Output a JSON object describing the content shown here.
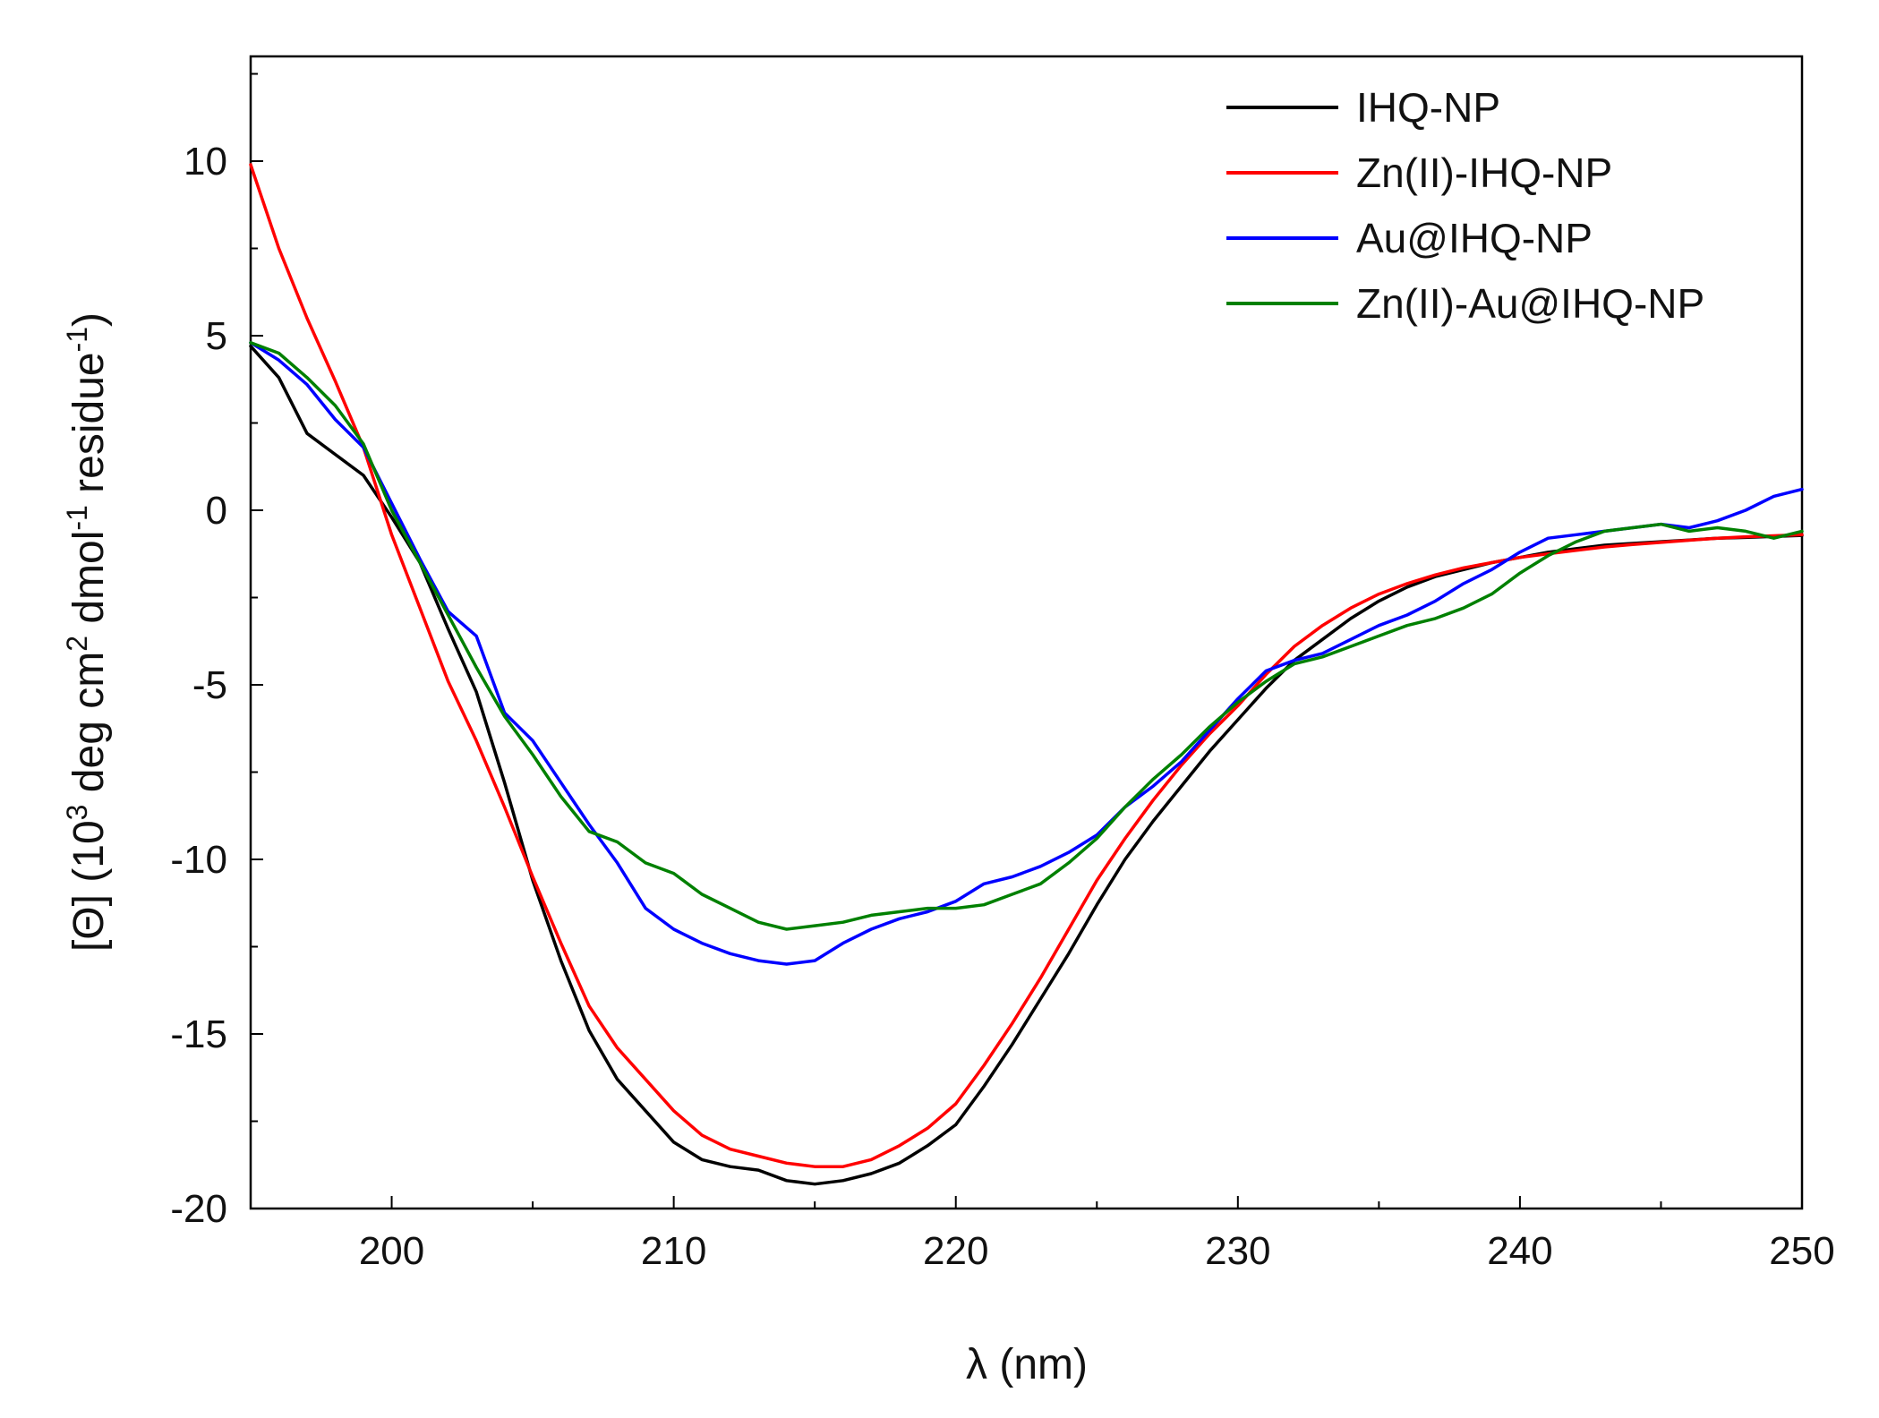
{
  "chart_data": {
    "type": "line",
    "title": "",
    "xlabel": "λ (nm)",
    "ylabel_parts": {
      "a": "[Θ] (10",
      "b": "3",
      "c": " deg cm",
      "d": "2",
      "e": " dmol",
      "f": "-1",
      "g": " residue",
      "h": "-1",
      "i": ")"
    },
    "xlim": [
      195,
      250
    ],
    "ylim": [
      -20,
      13
    ],
    "xticks": [
      200,
      210,
      220,
      230,
      240,
      250
    ],
    "yticks": [
      10,
      5,
      0,
      -5,
      -10,
      -15,
      -20
    ],
    "legend_position": "top-right",
    "series": [
      {
        "name": "IHQ-NP",
        "color": "#000000",
        "x": [
          195,
          196,
          197,
          198,
          199,
          200,
          201,
          202,
          203,
          204,
          205,
          206,
          207,
          208,
          209,
          210,
          211,
          212,
          213,
          214,
          215,
          216,
          217,
          218,
          219,
          220,
          221,
          222,
          223,
          224,
          225,
          226,
          227,
          228,
          229,
          230,
          231,
          232,
          233,
          234,
          235,
          236,
          237,
          238,
          239,
          240,
          241,
          242,
          243,
          244,
          245,
          246,
          247,
          248,
          249,
          250
        ],
        "y": [
          4.7,
          3.8,
          2.2,
          1.6,
          1.0,
          -0.2,
          -1.5,
          -3.4,
          -5.2,
          -7.8,
          -10.6,
          -12.9,
          -14.9,
          -16.3,
          -17.2,
          -18.1,
          -18.6,
          -18.8,
          -18.9,
          -19.2,
          -19.3,
          -19.2,
          -19.0,
          -18.7,
          -18.2,
          -17.6,
          -16.5,
          -15.3,
          -14.0,
          -12.7,
          -11.3,
          -10.0,
          -8.9,
          -7.9,
          -6.9,
          -6.0,
          -5.1,
          -4.3,
          -3.7,
          -3.1,
          -2.6,
          -2.2,
          -1.9,
          -1.7,
          -1.5,
          -1.35,
          -1.2,
          -1.1,
          -1.0,
          -0.95,
          -0.9,
          -0.85,
          -0.8,
          -0.78,
          -0.75,
          -0.72
        ]
      },
      {
        "name": "Zn(II)-IHQ-NP",
        "color": "#ff0000",
        "x": [
          195,
          196,
          197,
          198,
          199,
          200,
          201,
          202,
          203,
          204,
          205,
          206,
          207,
          208,
          209,
          210,
          211,
          212,
          213,
          214,
          215,
          216,
          217,
          218,
          219,
          220,
          221,
          222,
          223,
          224,
          225,
          226,
          227,
          228,
          229,
          230,
          231,
          232,
          233,
          234,
          235,
          236,
          237,
          238,
          239,
          240,
          241,
          242,
          243,
          244,
          245,
          246,
          247,
          248,
          249,
          250
        ],
        "y": [
          9.9,
          7.5,
          5.5,
          3.7,
          1.8,
          -0.7,
          -2.8,
          -4.9,
          -6.6,
          -8.5,
          -10.5,
          -12.4,
          -14.2,
          -15.4,
          -16.3,
          -17.2,
          -17.9,
          -18.3,
          -18.5,
          -18.7,
          -18.8,
          -18.8,
          -18.6,
          -18.2,
          -17.7,
          -17.0,
          -15.9,
          -14.7,
          -13.4,
          -12.0,
          -10.6,
          -9.4,
          -8.3,
          -7.3,
          -6.4,
          -5.6,
          -4.7,
          -3.9,
          -3.3,
          -2.8,
          -2.4,
          -2.1,
          -1.85,
          -1.65,
          -1.5,
          -1.35,
          -1.25,
          -1.15,
          -1.05,
          -0.98,
          -0.92,
          -0.86,
          -0.8,
          -0.76,
          -0.73,
          -0.7
        ]
      },
      {
        "name": "Au@IHQ-NP",
        "color": "#0000ff",
        "x": [
          195,
          196,
          197,
          198,
          199,
          200,
          201,
          202,
          203,
          204,
          205,
          206,
          207,
          208,
          209,
          210,
          211,
          212,
          213,
          214,
          215,
          216,
          217,
          218,
          219,
          220,
          221,
          222,
          223,
          224,
          225,
          226,
          227,
          228,
          229,
          230,
          231,
          232,
          233,
          234,
          235,
          236,
          237,
          238,
          239,
          240,
          241,
          242,
          243,
          244,
          245,
          246,
          247,
          248,
          249,
          250
        ],
        "y": [
          4.8,
          4.3,
          3.6,
          2.6,
          1.8,
          0.2,
          -1.4,
          -2.9,
          -3.6,
          -5.8,
          -6.6,
          -7.8,
          -9.0,
          -10.1,
          -11.4,
          -12.0,
          -12.4,
          -12.7,
          -12.9,
          -13.0,
          -12.9,
          -12.4,
          -12.0,
          -11.7,
          -11.5,
          -11.2,
          -10.7,
          -10.5,
          -10.2,
          -9.8,
          -9.3,
          -8.5,
          -7.9,
          -7.2,
          -6.3,
          -5.4,
          -4.6,
          -4.3,
          -4.1,
          -3.7,
          -3.3,
          -3.0,
          -2.6,
          -2.1,
          -1.7,
          -1.2,
          -0.8,
          -0.7,
          -0.6,
          -0.5,
          -0.4,
          -0.5,
          -0.3,
          0.0,
          0.4,
          0.6
        ]
      },
      {
        "name": "Zn(II)-Au@IHQ-NP",
        "color": "#008000",
        "x": [
          195,
          196,
          197,
          198,
          199,
          200,
          201,
          202,
          203,
          204,
          205,
          206,
          207,
          208,
          209,
          210,
          211,
          212,
          213,
          214,
          215,
          216,
          217,
          218,
          219,
          220,
          221,
          222,
          223,
          224,
          225,
          226,
          227,
          228,
          229,
          230,
          231,
          232,
          233,
          234,
          235,
          236,
          237,
          238,
          239,
          240,
          241,
          242,
          243,
          244,
          245,
          246,
          247,
          248,
          249,
          250
        ],
        "y": [
          4.8,
          4.5,
          3.8,
          3.0,
          1.9,
          0.0,
          -1.5,
          -3.0,
          -4.5,
          -5.9,
          -7.0,
          -8.2,
          -9.2,
          -9.5,
          -10.1,
          -10.4,
          -11.0,
          -11.4,
          -11.8,
          -12.0,
          -11.9,
          -11.8,
          -11.6,
          -11.5,
          -11.4,
          -11.4,
          -11.3,
          -11.0,
          -10.7,
          -10.1,
          -9.4,
          -8.5,
          -7.7,
          -7.0,
          -6.2,
          -5.5,
          -4.9,
          -4.4,
          -4.2,
          -3.9,
          -3.6,
          -3.3,
          -3.1,
          -2.8,
          -2.4,
          -1.8,
          -1.3,
          -0.9,
          -0.6,
          -0.5,
          -0.4,
          -0.6,
          -0.5,
          -0.6,
          -0.8,
          -0.6
        ]
      }
    ]
  }
}
